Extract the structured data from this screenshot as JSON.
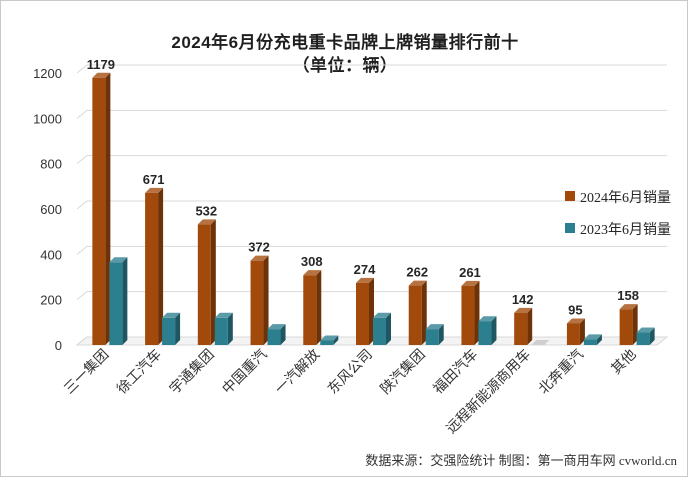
{
  "page": {
    "title": "2024年6月份充电重卡品牌上牌销量排行前十",
    "subtitle": "（单位：辆）",
    "source": "数据来源：交强险统计  制图：第一商用车网 cvworld.cn"
  },
  "chart_data": {
    "type": "bar",
    "title": "2024年6月份充电重卡品牌上牌销量排行前十",
    "subtitle": "（单位：辆）",
    "categories": [
      "三一集团",
      "徐工汽车",
      "宇通集团",
      "中国重汽",
      "一汽解放",
      "东风公司",
      "陕汽集团",
      "福田汽车",
      "远程新能源商用车",
      "北奔重汽",
      "其他"
    ],
    "series": [
      {
        "name": "2024年6月销量",
        "color": "#a14a0c",
        "values": [
          1179,
          671,
          532,
          372,
          308,
          274,
          262,
          261,
          142,
          95,
          158
        ],
        "labels": [
          "1179",
          "671",
          "532",
          "372",
          "308",
          "274",
          "262",
          "261",
          "142",
          "95",
          "158"
        ]
      },
      {
        "name": "2023年6月销量",
        "color": "#2c7f8e",
        "values": [
          365,
          120,
          120,
          70,
          20,
          120,
          70,
          105,
          0,
          25,
          55
        ]
      }
    ],
    "ylim": [
      0,
      1200
    ],
    "yticks": [
      "0",
      "200",
      "400",
      "600",
      "800",
      "1000",
      "1200"
    ],
    "grid": true,
    "legend": "right"
  }
}
